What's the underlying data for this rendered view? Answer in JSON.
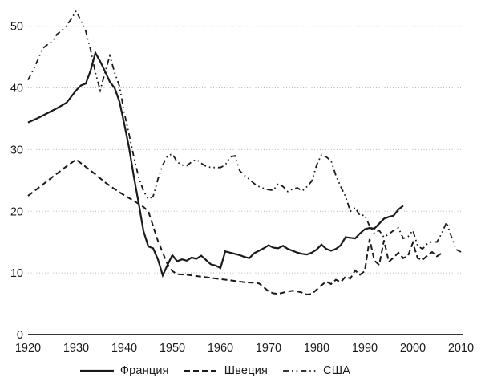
{
  "chart_data": {
    "type": "line",
    "title": "",
    "xlabel": "",
    "ylabel": "",
    "xlim": [
      1920,
      2010
    ],
    "ylim": [
      0,
      50
    ],
    "x_ticks": [
      "1920",
      "1930",
      "1940",
      "1950",
      "1960",
      "1970",
      "1980",
      "1990",
      "2000",
      "2010"
    ],
    "y_ticks": [
      "0",
      "10",
      "20",
      "30",
      "40",
      "50"
    ],
    "grid": "horizontal dotted lines at y=10..50, no vertical grid, no y-axis line",
    "legend_position": "bottom",
    "colors": {
      "line": "#1a1a1a",
      "grid": "#b5b5b5",
      "background": "#ffffff"
    },
    "series": [
      {
        "name": "Франция",
        "style": "solid",
        "points": [
          [
            1920,
            34.4
          ],
          [
            1922,
            35.1
          ],
          [
            1924,
            35.9
          ],
          [
            1926,
            36.7
          ],
          [
            1928,
            37.6
          ],
          [
            1930,
            39.6
          ],
          [
            1931,
            40.4
          ],
          [
            1932,
            40.7
          ],
          [
            1933,
            42.8
          ],
          [
            1934,
            45.7
          ],
          [
            1935,
            44.3
          ],
          [
            1936,
            42.7
          ],
          [
            1937,
            41.0
          ],
          [
            1938,
            40.0
          ],
          [
            1939,
            37.8
          ],
          [
            1940,
            34.2
          ],
          [
            1941,
            30.3
          ],
          [
            1942,
            25.6
          ],
          [
            1943,
            21.3
          ],
          [
            1944,
            16.8
          ],
          [
            1945,
            14.3
          ],
          [
            1946,
            14.0
          ],
          [
            1947,
            12.2
          ],
          [
            1948,
            9.6
          ],
          [
            1949,
            11.3
          ],
          [
            1950,
            12.9
          ],
          [
            1951,
            11.9
          ],
          [
            1952,
            12.2
          ],
          [
            1953,
            12.0
          ],
          [
            1954,
            12.5
          ],
          [
            1955,
            12.3
          ],
          [
            1956,
            12.8
          ],
          [
            1957,
            12.1
          ],
          [
            1958,
            11.4
          ],
          [
            1959,
            11.2
          ],
          [
            1960,
            10.8
          ],
          [
            1961,
            13.5
          ],
          [
            1962,
            13.3
          ],
          [
            1963,
            13.1
          ],
          [
            1964,
            12.9
          ],
          [
            1965,
            12.6
          ],
          [
            1966,
            12.4
          ],
          [
            1967,
            13.2
          ],
          [
            1968,
            13.6
          ],
          [
            1969,
            14.0
          ],
          [
            1970,
            14.5
          ],
          [
            1971,
            14.1
          ],
          [
            1972,
            14.0
          ],
          [
            1973,
            14.4
          ],
          [
            1974,
            13.9
          ],
          [
            1975,
            13.6
          ],
          [
            1976,
            13.3
          ],
          [
            1977,
            13.1
          ],
          [
            1978,
            13.0
          ],
          [
            1979,
            13.3
          ],
          [
            1980,
            13.8
          ],
          [
            1981,
            14.6
          ],
          [
            1982,
            13.9
          ],
          [
            1983,
            13.6
          ],
          [
            1984,
            13.9
          ],
          [
            1985,
            14.5
          ],
          [
            1986,
            15.8
          ],
          [
            1987,
            15.7
          ],
          [
            1988,
            15.6
          ],
          [
            1989,
            16.4
          ],
          [
            1990,
            17.1
          ],
          [
            1991,
            17.3
          ],
          [
            1992,
            17.2
          ],
          [
            1993,
            18.0
          ],
          [
            1994,
            18.8
          ],
          [
            1995,
            19.1
          ],
          [
            1996,
            19.3
          ],
          [
            1997,
            20.3
          ],
          [
            1998,
            20.9
          ]
        ]
      },
      {
        "name": "Швеция",
        "style": "dashed",
        "points": [
          [
            1920,
            22.5
          ],
          [
            1922,
            23.7
          ],
          [
            1924,
            24.9
          ],
          [
            1926,
            26.1
          ],
          [
            1928,
            27.3
          ],
          [
            1930,
            28.4
          ],
          [
            1932,
            27.2
          ],
          [
            1934,
            26.0
          ],
          [
            1936,
            24.7
          ],
          [
            1938,
            23.6
          ],
          [
            1940,
            22.6
          ],
          [
            1942,
            21.7
          ],
          [
            1944,
            20.7
          ],
          [
            1945,
            20.0
          ],
          [
            1946,
            17.6
          ],
          [
            1947,
            15.2
          ],
          [
            1948,
            13.3
          ],
          [
            1949,
            11.4
          ],
          [
            1950,
            10.3
          ],
          [
            1951,
            9.8
          ],
          [
            1953,
            9.7
          ],
          [
            1955,
            9.5
          ],
          [
            1957,
            9.3
          ],
          [
            1960,
            9.0
          ],
          [
            1963,
            8.7
          ],
          [
            1965,
            8.5
          ],
          [
            1967,
            8.4
          ],
          [
            1968,
            8.3
          ],
          [
            1969,
            7.7
          ],
          [
            1970,
            7.0
          ],
          [
            1971,
            6.7
          ],
          [
            1972,
            6.6
          ],
          [
            1973,
            6.8
          ],
          [
            1974,
            7.0
          ],
          [
            1975,
            7.1
          ],
          [
            1976,
            7.0
          ],
          [
            1977,
            6.8
          ],
          [
            1978,
            6.5
          ],
          [
            1979,
            6.6
          ],
          [
            1980,
            7.3
          ],
          [
            1981,
            8.0
          ],
          [
            1982,
            8.6
          ],
          [
            1983,
            8.2
          ],
          [
            1984,
            8.9
          ],
          [
            1985,
            8.5
          ],
          [
            1986,
            9.4
          ],
          [
            1987,
            9.1
          ],
          [
            1988,
            10.4
          ],
          [
            1989,
            9.7
          ],
          [
            1990,
            10.3
          ],
          [
            1991,
            15.5
          ],
          [
            1992,
            12.0
          ],
          [
            1993,
            11.3
          ],
          [
            1994,
            15.3
          ],
          [
            1995,
            11.8
          ],
          [
            1996,
            12.5
          ],
          [
            1997,
            13.3
          ],
          [
            1998,
            12.4
          ],
          [
            1999,
            12.8
          ],
          [
            2000,
            14.9
          ],
          [
            2001,
            12.4
          ],
          [
            2002,
            12.1
          ],
          [
            2003,
            12.8
          ],
          [
            2004,
            13.4
          ],
          [
            2005,
            12.7
          ],
          [
            2006,
            13.2
          ]
        ]
      },
      {
        "name": "США",
        "style": "dash-dot",
        "points": [
          [
            1920,
            41.3
          ],
          [
            1921,
            42.8
          ],
          [
            1922,
            44.5
          ],
          [
            1923,
            46.4
          ],
          [
            1924,
            47.0
          ],
          [
            1925,
            47.5
          ],
          [
            1926,
            48.7
          ],
          [
            1927,
            49.3
          ],
          [
            1928,
            50.1
          ],
          [
            1929,
            51.2
          ],
          [
            1930,
            52.5
          ],
          [
            1931,
            50.9
          ],
          [
            1932,
            49.2
          ],
          [
            1933,
            46.2
          ],
          [
            1934,
            42.5
          ],
          [
            1935,
            39.6
          ],
          [
            1936,
            42.5
          ],
          [
            1937,
            45.2
          ],
          [
            1938,
            42.5
          ],
          [
            1939,
            40.3
          ],
          [
            1940,
            36.0
          ],
          [
            1941,
            32.5
          ],
          [
            1942,
            28.8
          ],
          [
            1943,
            25.5
          ],
          [
            1944,
            23.3
          ],
          [
            1945,
            22.0
          ],
          [
            1946,
            22.4
          ],
          [
            1947,
            25.2
          ],
          [
            1948,
            27.5
          ],
          [
            1949,
            29.0
          ],
          [
            1950,
            29.3
          ],
          [
            1951,
            28.0
          ],
          [
            1952,
            27.5
          ],
          [
            1953,
            27.4
          ],
          [
            1954,
            28.0
          ],
          [
            1955,
            28.4
          ],
          [
            1956,
            27.8
          ],
          [
            1957,
            27.3
          ],
          [
            1958,
            27.1
          ],
          [
            1959,
            27.1
          ],
          [
            1960,
            27.1
          ],
          [
            1961,
            27.5
          ],
          [
            1962,
            28.8
          ],
          [
            1963,
            29.0
          ],
          [
            1964,
            26.6
          ],
          [
            1965,
            25.8
          ],
          [
            1966,
            25.2
          ],
          [
            1967,
            24.5
          ],
          [
            1968,
            24.0
          ],
          [
            1969,
            23.7
          ],
          [
            1970,
            23.5
          ],
          [
            1971,
            23.4
          ],
          [
            1972,
            24.5
          ],
          [
            1973,
            24.0
          ],
          [
            1974,
            23.2
          ],
          [
            1975,
            23.6
          ],
          [
            1976,
            23.8
          ],
          [
            1977,
            23.3
          ],
          [
            1978,
            24.0
          ],
          [
            1979,
            24.9
          ],
          [
            1980,
            27.5
          ],
          [
            1981,
            29.2
          ],
          [
            1982,
            28.8
          ],
          [
            1983,
            28.2
          ],
          [
            1984,
            25.8
          ],
          [
            1985,
            24.0
          ],
          [
            1986,
            22.4
          ],
          [
            1987,
            20.0
          ],
          [
            1988,
            20.6
          ],
          [
            1989,
            19.3
          ],
          [
            1990,
            19.4
          ],
          [
            1991,
            17.6
          ],
          [
            1992,
            16.4
          ],
          [
            1993,
            16.9
          ],
          [
            1994,
            15.8
          ],
          [
            1995,
            16.3
          ],
          [
            1996,
            16.9
          ],
          [
            1997,
            17.3
          ],
          [
            1998,
            15.6
          ],
          [
            1999,
            15.9
          ],
          [
            2000,
            16.9
          ],
          [
            2001,
            14.4
          ],
          [
            2002,
            13.9
          ],
          [
            2003,
            14.7
          ],
          [
            2004,
            15.1
          ],
          [
            2005,
            15.0
          ],
          [
            2006,
            16.4
          ],
          [
            2007,
            18.2
          ],
          [
            2008,
            15.9
          ],
          [
            2009,
            13.8
          ],
          [
            2010,
            13.4
          ]
        ]
      }
    ]
  }
}
